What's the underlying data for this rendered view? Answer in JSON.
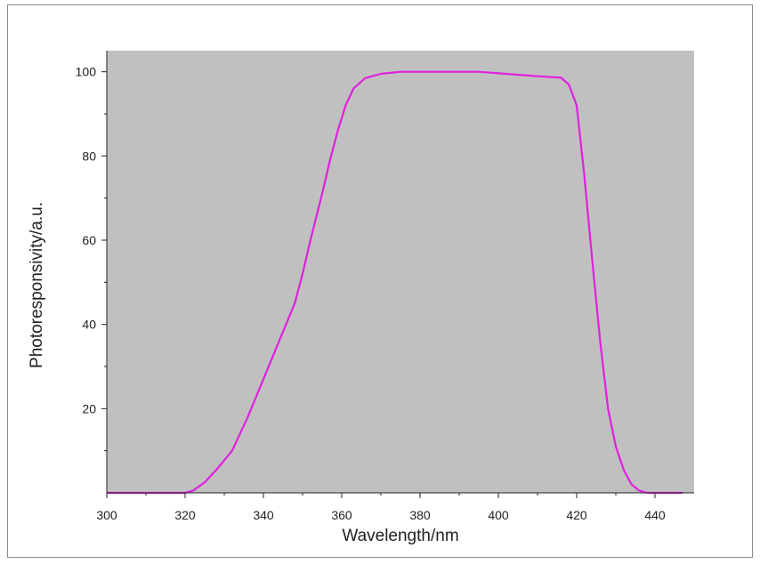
{
  "chart_data": {
    "type": "line",
    "title": "",
    "xlabel": "Wavelength/nm",
    "ylabel": "Photoresponsivity/a.u.",
    "xlim": [
      300,
      450
    ],
    "ylim": [
      0,
      105
    ],
    "x_ticks": [
      300,
      320,
      340,
      360,
      380,
      400,
      420,
      440
    ],
    "y_ticks": [
      20,
      40,
      60,
      80,
      100
    ],
    "grid": false,
    "legend": "none",
    "plot_background": "#c0c0c0",
    "series": [
      {
        "color": "#e020e0",
        "points": [
          [
            300,
            0
          ],
          [
            320,
            0
          ],
          [
            322,
            0.5
          ],
          [
            325,
            2.5
          ],
          [
            328,
            5.5
          ],
          [
            332,
            10
          ],
          [
            336,
            18
          ],
          [
            340,
            27
          ],
          [
            344,
            36
          ],
          [
            348,
            45
          ],
          [
            350,
            52
          ],
          [
            352,
            60
          ],
          [
            355,
            71
          ],
          [
            357,
            79
          ],
          [
            359,
            86
          ],
          [
            361,
            92
          ],
          [
            363,
            96
          ],
          [
            366,
            98.5
          ],
          [
            370,
            99.5
          ],
          [
            375,
            100
          ],
          [
            385,
            100
          ],
          [
            395,
            100
          ],
          [
            405,
            99.3
          ],
          [
            412,
            98.8
          ],
          [
            416,
            98.6
          ],
          [
            418,
            97
          ],
          [
            420,
            92
          ],
          [
            422,
            75
          ],
          [
            424,
            55
          ],
          [
            426,
            36
          ],
          [
            428,
            20
          ],
          [
            430,
            11
          ],
          [
            432,
            5.5
          ],
          [
            434,
            2
          ],
          [
            436,
            0.5
          ],
          [
            438,
            0
          ],
          [
            447,
            0
          ]
        ]
      }
    ]
  }
}
